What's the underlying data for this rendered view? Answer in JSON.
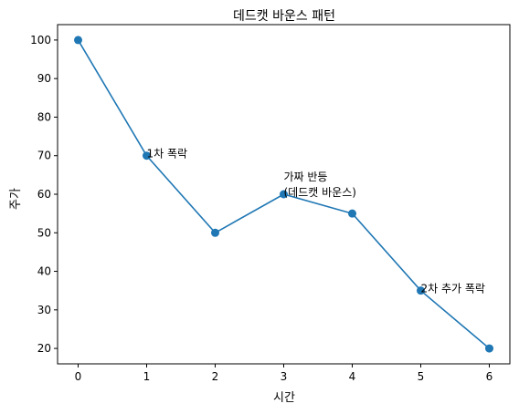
{
  "chart_data": {
    "type": "line",
    "title": "데드캣 바운스 패턴",
    "xlabel": "시간",
    "ylabel": "주가",
    "x": [
      0,
      1,
      2,
      3,
      4,
      5,
      6
    ],
    "series": [
      {
        "values": [
          100,
          70,
          50,
          60,
          55,
          35,
          20
        ]
      }
    ],
    "xlim": [
      -0.3,
      6.3
    ],
    "ylim": [
      16,
      104
    ],
    "xticks": [
      0,
      1,
      2,
      3,
      4,
      5,
      6
    ],
    "yticks": [
      20,
      30,
      40,
      50,
      60,
      70,
      80,
      90,
      100
    ],
    "grid": false,
    "annotations": [
      {
        "x": 1,
        "y": 70,
        "lines": [
          "1차 폭락"
        ]
      },
      {
        "x": 3,
        "y": 60,
        "lines": [
          "가짜 반등",
          "(데드캣 바운스)"
        ]
      },
      {
        "x": 5,
        "y": 35,
        "lines": [
          "2차 추가 폭락"
        ]
      }
    ],
    "colors": {
      "line": "#1f77b4",
      "marker": "#1f77b4"
    }
  }
}
